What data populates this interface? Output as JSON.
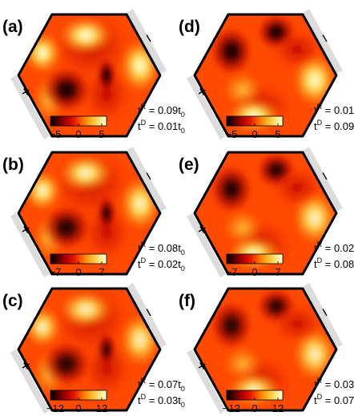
{
  "panels": [
    {
      "id": "a",
      "label": "(a)",
      "tR": "0.09",
      "tD": "0.01",
      "scale_min": -5,
      "scale_max": 5,
      "ticks": [
        "−5",
        "0",
        "5"
      ],
      "charge_sign": "+",
      "pattern": "A",
      "strength": 1.0
    },
    {
      "id": "b",
      "label": "(b)",
      "tR": "0.08",
      "tD": "0.02",
      "scale_min": -7,
      "scale_max": 7,
      "ticks": [
        "−7",
        "0",
        "7"
      ],
      "charge_sign": "+",
      "pattern": "A",
      "strength": 0.85
    },
    {
      "id": "c",
      "label": "(c)",
      "tR": "0.07",
      "tD": "0.03",
      "scale_min": -12,
      "scale_max": 12,
      "ticks": [
        "−12",
        "0",
        "12"
      ],
      "charge_sign": "+",
      "pattern": "A",
      "strength": 0.7
    },
    {
      "id": "d",
      "label": "(d)",
      "tR": "0.01",
      "tD": "0.09",
      "scale_min": -5,
      "scale_max": 5,
      "ticks": [
        "−5",
        "0",
        "5"
      ],
      "charge_sign": "+",
      "pattern": "B",
      "strength": 1.0
    },
    {
      "id": "e",
      "label": "(e)",
      "tR": "0.02",
      "tD": "0.08",
      "scale_min": -7,
      "scale_max": 7,
      "ticks": [
        "−7",
        "0",
        "7"
      ],
      "charge_sign": "+",
      "pattern": "B",
      "strength": 0.85
    },
    {
      "id": "f",
      "label": "(f)",
      "tR": "0.03",
      "tD": "0.07",
      "scale_min": -12,
      "scale_max": 12,
      "ticks": [
        "−12",
        "0",
        "12"
      ],
      "charge_sign": "+",
      "pattern": "B",
      "strength": 0.7
    }
  ],
  "param_text": {
    "t": "t",
    "sup_R": "R",
    "sup_D": "D",
    "eq": " = ",
    "unit_base": "t",
    "unit_sub": "0"
  },
  "minus_sign": "−",
  "colormap": [
    "#000000",
    "#5a0000",
    "#b00000",
    "#e81a00",
    "#ff6a00",
    "#ffb020",
    "#ffe070",
    "#ffffd8"
  ],
  "edge_color": "#000000",
  "lead_color": "#dcdcdc"
}
